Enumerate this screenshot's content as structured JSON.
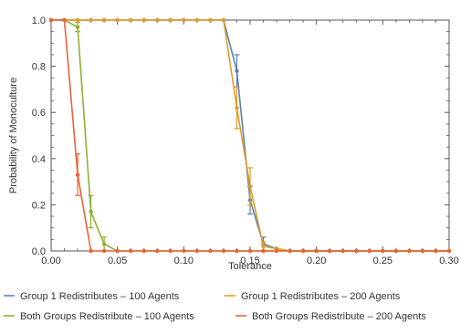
{
  "chart_data": {
    "type": "line",
    "title": "",
    "xlabel": "Tolerance",
    "ylabel": "Probability of Monoculture",
    "xlim": [
      0,
      0.3
    ],
    "ylim": [
      0,
      1.0
    ],
    "xticks": [
      0.0,
      0.05,
      0.1,
      0.15,
      0.2,
      0.25,
      0.3
    ],
    "xtick_labels": [
      "0.00",
      "0.05",
      "0.10",
      "0.15",
      "0.20",
      "0.25",
      "0.30"
    ],
    "yticks": [
      0.0,
      0.2,
      0.4,
      0.6,
      0.8,
      1.0
    ],
    "ytick_labels": [
      "0.0",
      "0.2",
      "0.4",
      "0.6",
      "0.8",
      "1.0"
    ],
    "grid": false,
    "legend_position": "bottom",
    "x": [
      0,
      0.01,
      0.02,
      0.03,
      0.04,
      0.05,
      0.06,
      0.07,
      0.08,
      0.09,
      0.1,
      0.11,
      0.12,
      0.13,
      0.14,
      0.15,
      0.16,
      0.17,
      0.18,
      0.19,
      0.2,
      0.21,
      0.22,
      0.23,
      0.24,
      0.25,
      0.26,
      0.27,
      0.28,
      0.29,
      0.3
    ],
    "series": [
      {
        "name": "Group 1 Redistributes – 100 Agents",
        "color": "#5e81b5",
        "values": [
          1,
          1,
          1,
          1,
          1,
          1,
          1,
          1,
          1,
          1,
          1,
          1,
          1,
          1,
          0.78,
          0.22,
          0.03,
          0.01,
          0,
          0,
          0,
          0,
          0,
          0,
          0,
          0,
          0,
          0,
          0,
          0,
          0
        ],
        "errors": [
          0,
          0,
          0,
          0,
          0,
          0,
          0,
          0,
          0,
          0,
          0,
          0,
          0,
          0,
          0.07,
          0.06,
          0.03,
          0,
          0,
          0,
          0,
          0,
          0,
          0,
          0,
          0,
          0,
          0,
          0,
          0,
          0
        ]
      },
      {
        "name": "Group 1 Redistributes – 200 Agents",
        "color": "#e19c24",
        "values": [
          1,
          1,
          1,
          1,
          1,
          1,
          1,
          1,
          1,
          1,
          1,
          1,
          1,
          1,
          0.62,
          0.28,
          0.02,
          0.01,
          0,
          0,
          0,
          0,
          0,
          0,
          0,
          0,
          0,
          0,
          0,
          0,
          0
        ],
        "errors": [
          0,
          0,
          0,
          0,
          0,
          0,
          0,
          0,
          0,
          0,
          0,
          0,
          0,
          0,
          0.09,
          0.08,
          0.02,
          0,
          0,
          0,
          0,
          0,
          0,
          0,
          0,
          0,
          0,
          0,
          0,
          0,
          0
        ]
      },
      {
        "name": "Both Groups Redistribute – 100 Agents",
        "color": "#8fb032",
        "values": [
          1,
          1,
          0.97,
          0.17,
          0.03,
          0,
          0,
          0,
          0,
          0,
          0,
          0,
          0,
          0,
          0,
          0,
          0,
          0,
          0,
          0,
          0,
          0,
          0,
          0,
          0,
          0,
          0,
          0,
          0,
          0,
          0
        ],
        "errors": [
          0,
          0,
          0.02,
          0.07,
          0.03,
          0,
          0,
          0,
          0,
          0,
          0,
          0,
          0,
          0,
          0,
          0,
          0,
          0,
          0,
          0,
          0,
          0,
          0,
          0,
          0,
          0,
          0,
          0,
          0,
          0,
          0
        ]
      },
      {
        "name": "Both Groups Redistribute – 200 Agents",
        "color": "#eb6235",
        "values": [
          1,
          1,
          0.33,
          0,
          0,
          0,
          0,
          0,
          0,
          0,
          0,
          0,
          0,
          0,
          0,
          0,
          0,
          0,
          0,
          0,
          0,
          0,
          0,
          0,
          0,
          0,
          0,
          0,
          0,
          0,
          0
        ],
        "errors": [
          0,
          0,
          0.09,
          0,
          0,
          0,
          0,
          0,
          0,
          0,
          0,
          0,
          0,
          0,
          0,
          0,
          0,
          0,
          0,
          0,
          0,
          0,
          0,
          0,
          0,
          0,
          0,
          0,
          0,
          0,
          0
        ]
      }
    ]
  }
}
